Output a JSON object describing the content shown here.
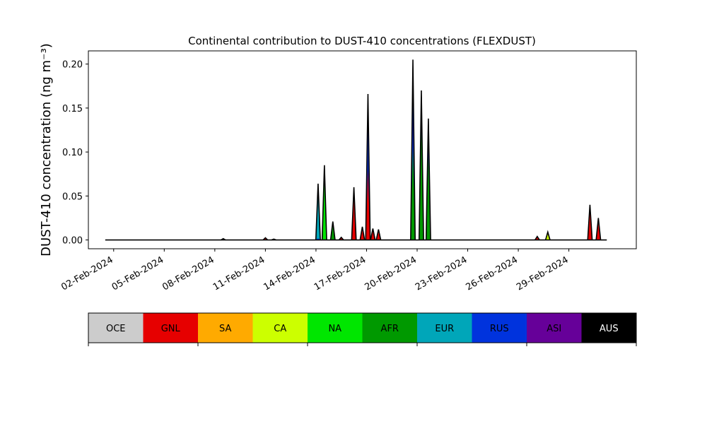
{
  "chart_data": {
    "type": "area",
    "title": "Continental contribution to DUST-410 concentrations (FLEXDUST)",
    "ylabel": "DUST-410 concentration (ng m⁻³)",
    "xlabel": "",
    "ylim": [
      -0.01,
      0.215
    ],
    "xlim": [
      "2024-01-31 12:00",
      "2024-03-04 00:00"
    ],
    "yticks": [
      0.0,
      0.05,
      0.1,
      0.15,
      0.2
    ],
    "ytick_labels": [
      "0.00",
      "0.05",
      "0.10",
      "0.15",
      "0.20"
    ],
    "xticks": [
      "2024-02-02",
      "2024-02-05",
      "2024-02-08",
      "2024-02-11",
      "2024-02-14",
      "2024-02-17",
      "2024-02-20",
      "2024-02-23",
      "2024-02-26",
      "2024-02-29"
    ],
    "xtick_labels": [
      "02-Feb-2024",
      "05-Feb-2024",
      "08-Feb-2024",
      "11-Feb-2024",
      "14-Feb-2024",
      "17-Feb-2024",
      "20-Feb-2024",
      "23-Feb-2024",
      "26-Feb-2024",
      "29-Feb-2024"
    ],
    "legend_placement": "bottom",
    "categories": [
      {
        "code": "OCE",
        "color": "#cccccc",
        "text_color": "#000000"
      },
      {
        "code": "GNL",
        "color": "#e60000",
        "text_color": "#000000"
      },
      {
        "code": "SA",
        "color": "#ffaa00",
        "text_color": "#000000"
      },
      {
        "code": "CA",
        "color": "#ccff00",
        "text_color": "#000000"
      },
      {
        "code": "NA",
        "color": "#00e600",
        "text_color": "#000000"
      },
      {
        "code": "AFR",
        "color": "#009900",
        "text_color": "#000000"
      },
      {
        "code": "EUR",
        "color": "#00a6b9",
        "text_color": "#000000"
      },
      {
        "code": "RUS",
        "color": "#0033dd",
        "text_color": "#000000"
      },
      {
        "code": "ASI",
        "color": "#660099",
        "text_color": "#000000"
      },
      {
        "code": "AUS",
        "color": "#000000",
        "text_color": "#ffffff"
      }
    ],
    "events": [
      {
        "date": "2024-02-08 12:00",
        "total": 0.0015,
        "layers": [
          [
            "OCE",
            0.0005
          ],
          [
            "EUR",
            0.001
          ]
        ]
      },
      {
        "date": "2024-02-11 00:00",
        "total": 0.0025,
        "layers": [
          [
            "GNL",
            0.0025
          ]
        ]
      },
      {
        "date": "2024-02-11 12:00",
        "total": 0.001,
        "layers": [
          [
            "GNL",
            0.001
          ]
        ]
      },
      {
        "date": "2024-02-14 03:00",
        "total": 0.064,
        "layers": [
          [
            "RUS",
            0.002
          ],
          [
            "EUR",
            0.062
          ]
        ]
      },
      {
        "date": "2024-02-14 12:00",
        "total": 0.085,
        "layers": [
          [
            "AFR",
            0.001
          ],
          [
            "NA",
            0.075
          ],
          [
            "EUR",
            0.009
          ]
        ]
      },
      {
        "date": "2024-02-15 00:00",
        "total": 0.021,
        "layers": [
          [
            "AFR",
            0.02
          ],
          [
            "EUR",
            0.001
          ]
        ]
      },
      {
        "date": "2024-02-15 12:00",
        "total": 0.003,
        "layers": [
          [
            "GNL",
            0.003
          ]
        ]
      },
      {
        "date": "2024-02-16 06:00",
        "total": 0.06,
        "layers": [
          [
            "GNL",
            0.055
          ],
          [
            "RUS",
            0.005
          ]
        ]
      },
      {
        "date": "2024-02-16 18:00",
        "total": 0.015,
        "layers": [
          [
            "GNL",
            0.013
          ],
          [
            "AFR",
            0.002
          ]
        ]
      },
      {
        "date": "2024-02-17 02:00",
        "total": 0.166,
        "layers": [
          [
            "GNL",
            0.08
          ],
          [
            "RUS",
            0.086
          ]
        ]
      },
      {
        "date": "2024-02-17 09:00",
        "total": 0.013,
        "layers": [
          [
            "GNL",
            0.012
          ],
          [
            "RUS",
            0.001
          ]
        ]
      },
      {
        "date": "2024-02-17 17:00",
        "total": 0.012,
        "layers": [
          [
            "GNL",
            0.011
          ],
          [
            "RUS",
            0.001
          ]
        ]
      },
      {
        "date": "2024-02-19 18:00",
        "total": 0.205,
        "layers": [
          [
            "AFR",
            0.105
          ],
          [
            "RUS",
            0.1
          ]
        ]
      },
      {
        "date": "2024-02-20 06:00",
        "total": 0.17,
        "layers": [
          [
            "AFR",
            0.13
          ],
          [
            "RUS",
            0.04
          ]
        ]
      },
      {
        "date": "2024-02-20 16:00",
        "total": 0.138,
        "layers": [
          [
            "AFR",
            0.095
          ],
          [
            "RUS",
            0.043
          ]
        ]
      },
      {
        "date": "2024-02-27 03:00",
        "total": 0.004,
        "layers": [
          [
            "GNL",
            0.003
          ],
          [
            "RUS",
            0.001
          ]
        ]
      },
      {
        "date": "2024-02-27 18:00",
        "total": 0.009,
        "layers": [
          [
            "CA",
            0.007
          ],
          [
            "AFR",
            0.002
          ]
        ]
      },
      {
        "date": "2024-03-01 06:00",
        "total": 0.04,
        "layers": [
          [
            "GNL",
            0.036
          ],
          [
            "RUS",
            0.004
          ]
        ]
      },
      {
        "date": "2024-03-01 18:00",
        "total": 0.025,
        "layers": [
          [
            "GNL",
            0.023
          ],
          [
            "RUS",
            0.002
          ]
        ]
      }
    ],
    "baseline_range": [
      "2024-02-01 12:00",
      "2024-03-02 06:00"
    ]
  }
}
